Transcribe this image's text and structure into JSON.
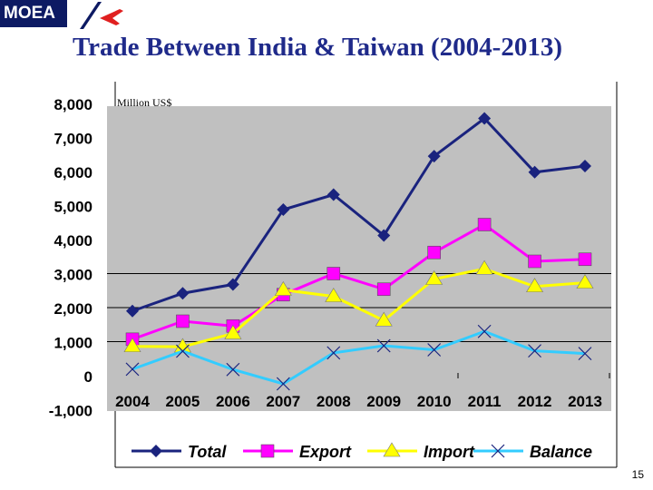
{
  "logo": {
    "text": "MOEA"
  },
  "title": "Trade Between India & Taiwan (2004-2013)",
  "page_number": "15",
  "colors": {
    "total": "#1a237e",
    "export": "#ff00ff",
    "import": "#ffff00",
    "balance": "#33ccff",
    "plot_bg": "#c0c0c0",
    "title": "#1f2a8a"
  },
  "chart_data": {
    "type": "line",
    "title": "Trade Between India & Taiwan (2004-2013)",
    "unit_label": "Million US$",
    "categories": [
      "2004",
      "2005",
      "2006",
      "2007",
      "2008",
      "2009",
      "2010",
      "2011",
      "2012",
      "2013"
    ],
    "y_ticks": [
      "8,000",
      "7,000",
      "6,000",
      "5,000",
      "4,000",
      "3,000",
      "2,000",
      "1,000",
      "0",
      "-1,000"
    ],
    "ylim": [
      -1000,
      8000
    ],
    "grid": true,
    "legend_position": "bottom",
    "series": [
      {
        "name": "Total",
        "marker": "diamond",
        "values": [
          1900,
          2420,
          2680,
          4880,
          5320,
          4120,
          6450,
          7560,
          5980,
          6160
        ]
      },
      {
        "name": "Export",
        "marker": "square",
        "values": [
          1070,
          1600,
          1460,
          2380,
          3000,
          2540,
          3620,
          4440,
          3360,
          3420
        ]
      },
      {
        "name": "Import",
        "marker": "triangle",
        "values": [
          860,
          850,
          1240,
          2520,
          2330,
          1620,
          2840,
          3140,
          2620,
          2730
        ]
      },
      {
        "name": "Balance",
        "marker": "x",
        "values": [
          190,
          720,
          180,
          -240,
          670,
          880,
          760,
          1300,
          730,
          650
        ]
      }
    ]
  }
}
